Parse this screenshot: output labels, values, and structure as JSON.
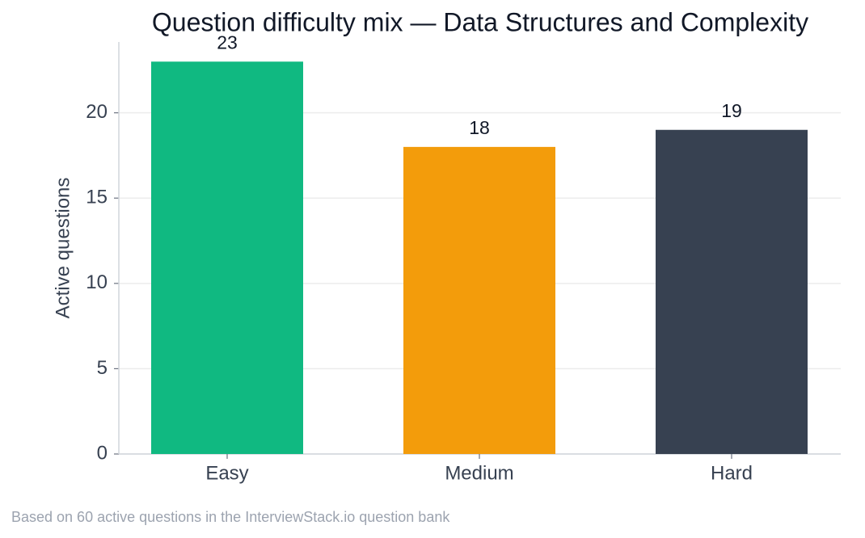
{
  "chart_data": {
    "type": "bar",
    "title": "Question difficulty mix — Data Structures and Complexity",
    "y_label": "Active questions",
    "footnote": "Based on 60 active questions in the InterviewStack.io question bank",
    "categories": [
      "Easy",
      "Medium",
      "Hard"
    ],
    "values": [
      23,
      18,
      19
    ],
    "colors": [
      "#10b981",
      "#f39c0b",
      "#374151"
    ],
    "ylim": [
      0,
      24.15
    ],
    "yticks": [
      0,
      5,
      10,
      15,
      20
    ],
    "grid": true
  }
}
